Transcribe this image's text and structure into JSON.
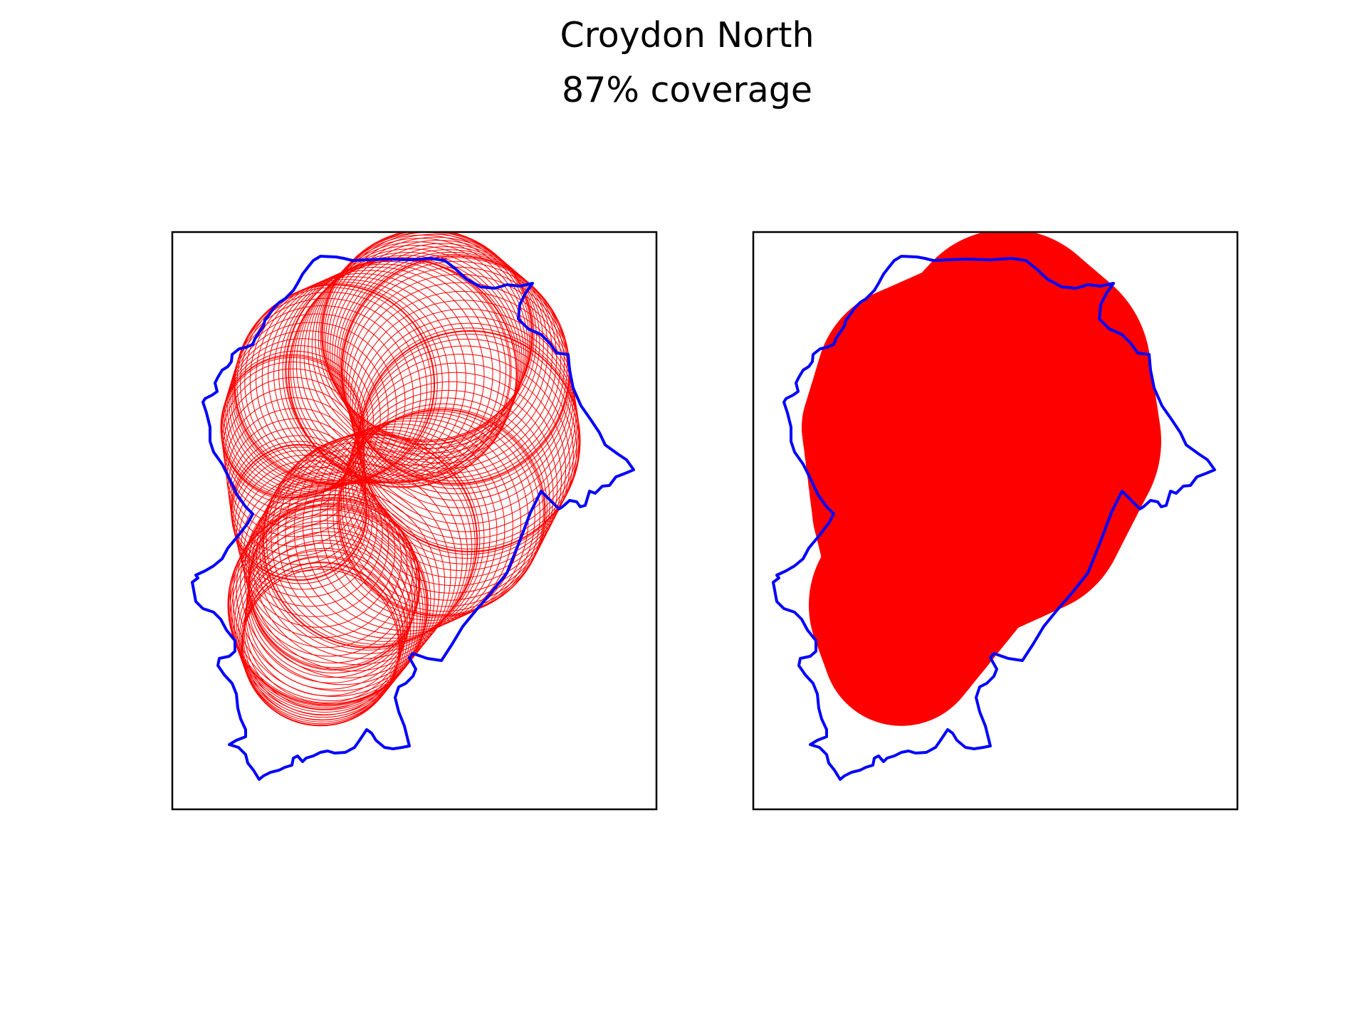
{
  "title": "Croydon North",
  "subtitle": "87% coverage",
  "chart_data": [
    {
      "type": "map",
      "panel": "circles-outlined",
      "ticks": "none",
      "boundary_color": "#0000ff",
      "circle_color": "#ff0000",
      "circle_fill": false
    },
    {
      "type": "map",
      "panel": "circles-filled",
      "ticks": "none",
      "boundary_color": "#0000ff",
      "circle_color": "#ff0000",
      "circle_fill": true
    }
  ]
}
